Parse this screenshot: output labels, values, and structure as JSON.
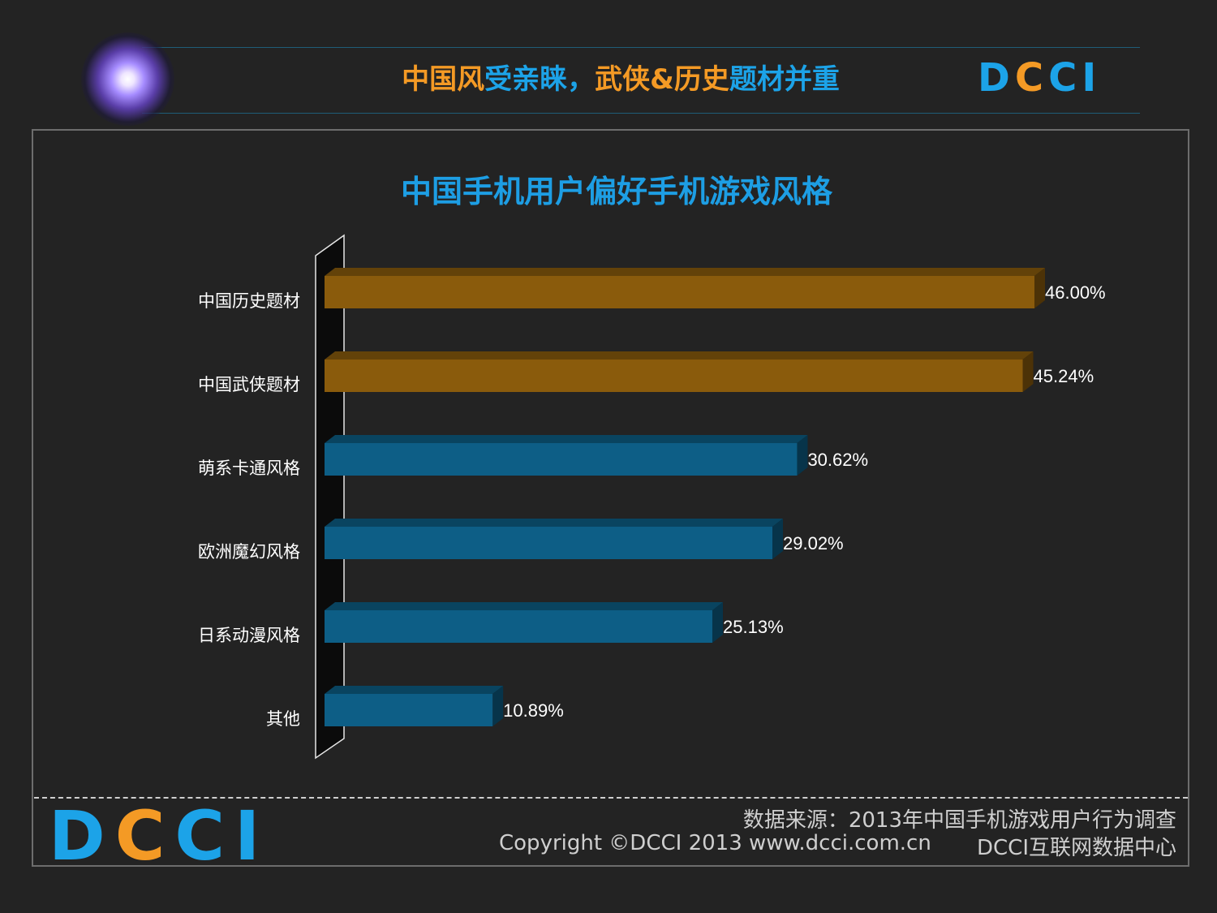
{
  "header": {
    "title_part1": "中国风",
    "title_part2": "受亲睐，",
    "title_part3": "武侠&历史",
    "title_part4": "题材并重",
    "logo": "DCCI"
  },
  "chart_data": {
    "type": "bar",
    "orientation": "horizontal",
    "title": "中国手机用户偏好手机游戏风格",
    "categories": [
      "中国历史题材",
      "中国武侠题材",
      "萌系卡通风格",
      "欧洲魔幻风格",
      "日系动漫风格",
      "其他"
    ],
    "values": [
      46.0,
      45.24,
      30.62,
      29.02,
      25.13,
      10.89
    ],
    "value_labels": [
      "46.00%",
      "45.24%",
      "30.62%",
      "29.02%",
      "25.13%",
      "10.89%"
    ],
    "colors": [
      "#8a5b0c",
      "#8a5b0c",
      "#0d5e86",
      "#0d5e86",
      "#0d5e86",
      "#0d5e86"
    ],
    "xlim": [
      0,
      46
    ]
  },
  "footer": {
    "logo": "DCCI",
    "source": "数据来源：2013年中国手机游戏用户行为调查",
    "copyright": "Copyright ©DCCI 2013 www.dcci.com.cn",
    "center_name": "DCCI互联网数据中心"
  }
}
